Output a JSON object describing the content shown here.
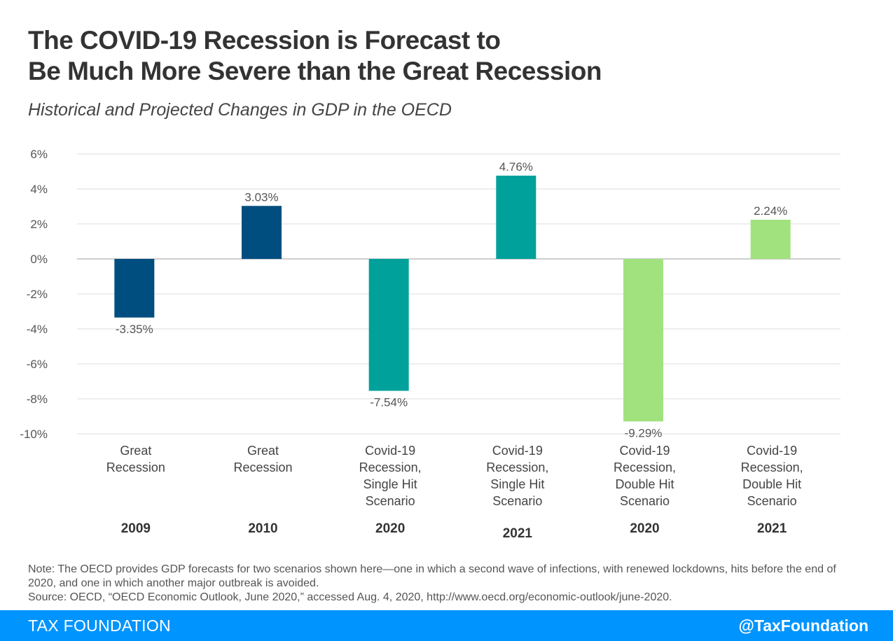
{
  "header": {
    "title_line1": "The COVID-19 Recession is Forecast to",
    "title_line2": "Be Much More Severe than the Great Recession",
    "subtitle": "Historical and Projected Changes in GDP in the OECD"
  },
  "chart_data": {
    "type": "bar",
    "ylim": [
      -10,
      6
    ],
    "yticks": [
      6,
      4,
      2,
      0,
      -2,
      -4,
      -6,
      -8,
      -10
    ],
    "ytick_labels": [
      "6%",
      "4%",
      "2%",
      "0%",
      "-2%",
      "-4%",
      "-6%",
      "-8%",
      "-10%"
    ],
    "grid": true,
    "categories": [
      {
        "lines": [
          "Great",
          "Recession"
        ],
        "year": "2009"
      },
      {
        "lines": [
          "Great",
          "Recession"
        ],
        "year": "2010"
      },
      {
        "lines": [
          "Covid-19",
          "Recession,",
          "Single Hit",
          "Scenario"
        ],
        "year": "2020"
      },
      {
        "lines": [
          "Covid-19",
          "Recession,",
          "Single Hit",
          "Scenario"
        ],
        "year": "2021"
      },
      {
        "lines": [
          "Covid-19",
          "Recession,",
          "Double Hit",
          "Scenario"
        ],
        "year": "2020"
      },
      {
        "lines": [
          "Covid-19",
          "Recession,",
          "Double Hit",
          "Scenario"
        ],
        "year": "2021"
      }
    ],
    "values": [
      -3.35,
      3.03,
      -7.54,
      4.76,
      -9.29,
      2.24
    ],
    "data_labels": [
      "-3.35%",
      "3.03%",
      "-7.54%",
      "4.76%",
      "-9.29%",
      "2.24%"
    ],
    "colors": [
      "#004e7f",
      "#004e7f",
      "#00a19a",
      "#00a19a",
      "#a1e27e",
      "#a1e27e"
    ]
  },
  "notes": {
    "note": "Note: The OECD provides GDP forecasts for two scenarios shown here—one in which a second wave of infections, with renewed lockdowns, hits before the end of 2020, and one in which another major outbreak is avoided.",
    "source": "Source: OECD, “OECD Economic Outlook, June 2020,” accessed Aug. 4, 2020, http://www.oecd.org/economic-outlook/june-2020."
  },
  "footer": {
    "brand": "TAX FOUNDATION",
    "handle": "@TaxFoundation"
  }
}
